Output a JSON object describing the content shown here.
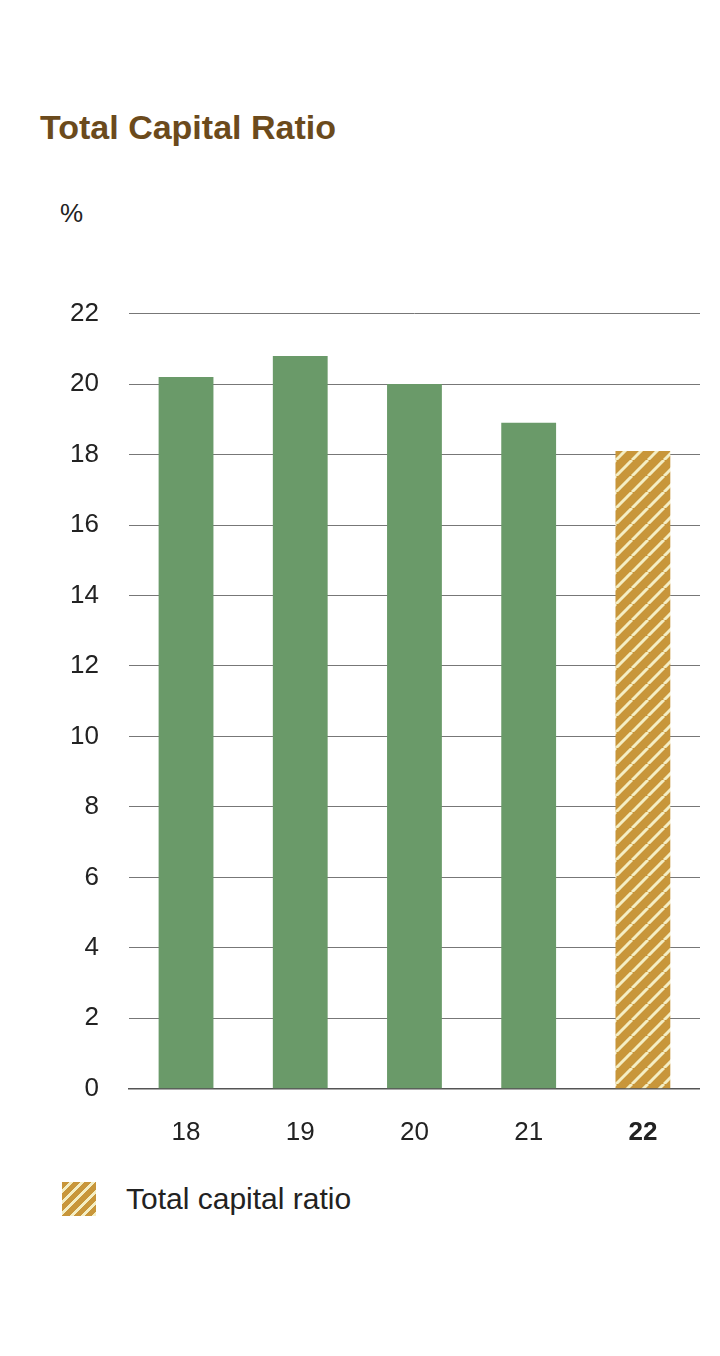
{
  "chart_data": {
    "type": "bar",
    "title": "Total Capital Ratio",
    "ylabel": "%",
    "categories": [
      "18",
      "19",
      "20",
      "21",
      "22"
    ],
    "series": [
      {
        "name": "Total capital ratio",
        "color": "#c8963a",
        "values": [
          20.2,
          20.8,
          20.0,
          18.9,
          18.1
        ],
        "colors": [
          "#6a9a69",
          "#6a9a69",
          "#6a9a69",
          "#6a9a69",
          "#c8963a"
        ]
      }
    ],
    "ylim": [
      0,
      22
    ],
    "yticks": [
      0,
      2,
      4,
      6,
      8,
      10,
      12,
      14,
      16,
      18,
      20,
      22
    ],
    "grid": true,
    "legend": "bottom-left"
  }
}
